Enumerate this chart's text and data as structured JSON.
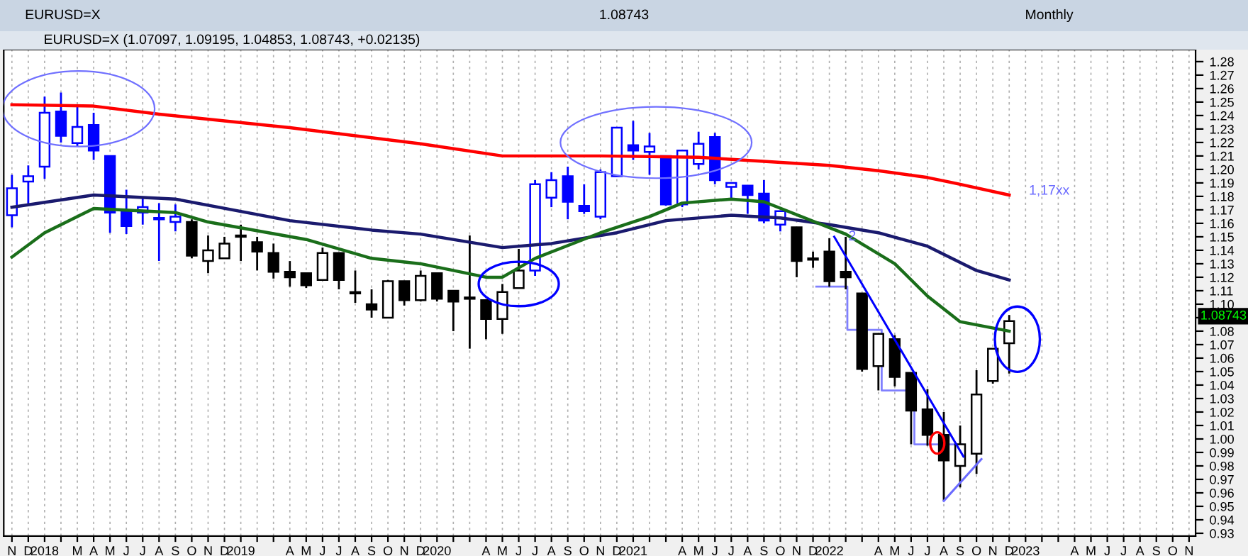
{
  "chart_data": {
    "type": "candlestick",
    "title": "EURUSD=X (1.07097, 1.09195, 1.04853, 1.08743, +0.02135)",
    "annotations": [
      "EURUSD=X",
      "1.08743",
      "Monthly",
      "1,17xx",
      {
        "text": "2",
        "x": "2022-02-06",
        "y": 1.15
      },
      "1.08743"
    ],
    "x": [
      "2017-11",
      "2017-12",
      "2018-01",
      "2018-02",
      "2018-03",
      "2018-04",
      "2018-05",
      "2018-06",
      "2018-07",
      "2018-08",
      "2018-09",
      "2018-10",
      "2018-11",
      "2018-12",
      "2019-01",
      "2019-02",
      "2019-03",
      "2019-04",
      "2019-05",
      "2019-06",
      "2019-07",
      "2019-08",
      "2019-09",
      "2019-10",
      "2019-11",
      "2019-12",
      "2020-01",
      "2020-02",
      "2020-03",
      "2020-04",
      "2020-05",
      "2020-06",
      "2020-07",
      "2020-08",
      "2020-09",
      "2020-10",
      "2020-11",
      "2020-12",
      "2021-01",
      "2021-02",
      "2021-03",
      "2021-04",
      "2021-05",
      "2021-06",
      "2021-07",
      "2021-08",
      "2021-09",
      "2021-10",
      "2021-11",
      "2021-12",
      "2022-01",
      "2022-02",
      "2022-03",
      "2022-04",
      "2022-05",
      "2022-06",
      "2022-07",
      "2022-08",
      "2022-09",
      "2022-10",
      "2022-11",
      "2022-12"
    ],
    "ohlc": [
      [
        1.166,
        1.196,
        1.157,
        1.186
      ],
      [
        1.191,
        1.203,
        1.173,
        1.195
      ],
      [
        1.202,
        1.254,
        1.193,
        1.242
      ],
      [
        1.243,
        1.257,
        1.22,
        1.225
      ],
      [
        1.2195,
        1.248,
        1.217,
        1.2315
      ],
      [
        1.233,
        1.242,
        1.207,
        1.214
      ],
      [
        1.21,
        1.21,
        1.153,
        1.168
      ],
      [
        1.169,
        1.185,
        1.152,
        1.158
      ],
      [
        1.168,
        1.18,
        1.159,
        1.172
      ],
      [
        1.163,
        1.175,
        1.132,
        1.164
      ],
      [
        1.161,
        1.174,
        1.154,
        1.165
      ],
      [
        1.161,
        1.163,
        1.134,
        1.136
      ],
      [
        1.132,
        1.151,
        1.123,
        1.14
      ],
      [
        1.134,
        1.15,
        1.134,
        1.145
      ],
      [
        1.15,
        1.159,
        1.132,
        1.151
      ],
      [
        1.146,
        1.15,
        1.125,
        1.139
      ],
      [
        1.138,
        1.145,
        1.119,
        1.124
      ],
      [
        1.124,
        1.132,
        1.113,
        1.12
      ],
      [
        1.123,
        1.123,
        1.112,
        1.114
      ],
      [
        1.118,
        1.142,
        1.118,
        1.138
      ],
      [
        1.138,
        1.138,
        1.111,
        1.118
      ],
      [
        1.109,
        1.125,
        1.101,
        1.108
      ],
      [
        1.1,
        1.111,
        1.09,
        1.096
      ],
      [
        1.09,
        1.118,
        1.09,
        1.117
      ],
      [
        1.117,
        1.117,
        1.099,
        1.103
      ],
      [
        1.103,
        1.125,
        1.102,
        1.121
      ],
      [
        1.123,
        1.123,
        1.102,
        1.104
      ],
      [
        1.11,
        1.11,
        1.08,
        1.102
      ],
      [
        1.105,
        1.151,
        1.067,
        1.104
      ],
      [
        1.103,
        1.103,
        1.074,
        1.089
      ],
      [
        1.089,
        1.115,
        1.078,
        1.109
      ],
      [
        1.112,
        1.141,
        1.112,
        1.125
      ],
      [
        1.125,
        1.192,
        1.121,
        1.189
      ],
      [
        1.179,
        1.198,
        1.172,
        1.192
      ],
      [
        1.195,
        1.202,
        1.163,
        1.176
      ],
      [
        1.173,
        1.189,
        1.167,
        1.169
      ],
      [
        1.165,
        1.2,
        1.163,
        1.198
      ],
      [
        1.195,
        1.231,
        1.195,
        1.231
      ],
      [
        1.218,
        1.236,
        1.207,
        1.214
      ],
      [
        1.213,
        1.227,
        1.196,
        1.217
      ],
      [
        1.21,
        1.21,
        1.173,
        1.174
      ],
      [
        1.174,
        1.214,
        1.172,
        1.214
      ],
      [
        1.204,
        1.228,
        1.2,
        1.219
      ],
      [
        1.224,
        1.227,
        1.189,
        1.192
      ],
      [
        1.187,
        1.19,
        1.178,
        1.19
      ],
      [
        1.188,
        1.188,
        1.167,
        1.181
      ],
      [
        1.182,
        1.192,
        1.16,
        1.162
      ],
      [
        1.159,
        1.169,
        1.154,
        1.169
      ],
      [
        1.157,
        1.157,
        1.12,
        1.132
      ],
      [
        1.133,
        1.139,
        1.127,
        1.134
      ],
      [
        1.139,
        1.149,
        1.113,
        1.117
      ],
      [
        1.124,
        1.15,
        1.111,
        1.12
      ],
      [
        1.108,
        1.108,
        1.05,
        1.052
      ],
      [
        1.054,
        1.078,
        1.036,
        1.078
      ],
      [
        1.074,
        1.077,
        1.039,
        1.046
      ],
      [
        1.049,
        1.049,
        0.996,
        1.021
      ],
      [
        1.022,
        1.037,
        0.995,
        1.003
      ],
      [
        1.003,
        1.02,
        0.954,
        0.984
      ],
      [
        0.98,
        1.01,
        0.964,
        0.996
      ],
      [
        0.989,
        1.051,
        0.974,
        1.033
      ],
      [
        1.043,
        1.067,
        1.041,
        1.067
      ],
      [
        1.07097,
        1.09195,
        1.04853,
        1.08743
      ]
    ],
    "colors": [
      "#0000ff",
      "#0000ff",
      "#0000ff",
      "#0000ff",
      "#0000ff",
      "#0000ff",
      "#0000ff",
      "#0000ff",
      "#0000ff",
      "#0000ff",
      "#0000ff",
      "#000000",
      "#000000",
      "#000000",
      "#000000",
      "#000000",
      "#000000",
      "#000000",
      "#000000",
      "#000000",
      "#000000",
      "#000000",
      "#000000",
      "#000000",
      "#000000",
      "#000000",
      "#000000",
      "#000000",
      "#000000",
      "#000000",
      "#000000",
      "#000000",
      "#0000ff",
      "#0000ff",
      "#0000ff",
      "#0000ff",
      "#0000ff",
      "#0000ff",
      "#0000ff",
      "#0000ff",
      "#0000ff",
      "#0000ff",
      "#0000ff",
      "#0000ff",
      "#0000ff",
      "#0000ff",
      "#0000ff",
      "#0000ff",
      "#000000",
      "#000000",
      "#000000",
      "#000000",
      "#000000",
      "#000000",
      "#000000",
      "#000000",
      "#000000",
      "#000000",
      "#000000",
      "#000000",
      "#000000",
      "#000000"
    ],
    "series": [
      {
        "type": "line",
        "color": "#ff0000",
        "x": [
          "2017-11",
          "2018-04",
          "2018-08",
          "2019-04",
          "2019-12",
          "2020-05",
          "2020-11",
          "2021-05",
          "2022-01",
          "2022-04",
          "2022-07",
          "2022-09",
          "2022-12"
        ],
        "values": [
          1.248,
          1.247,
          1.241,
          1.231,
          1.219,
          1.21,
          1.21,
          1.209,
          1.203,
          1.199,
          1.194,
          1.189,
          1.181
        ]
      },
      {
        "type": "line",
        "color": "#1a1a6e",
        "x": [
          "2017-11",
          "2018-04",
          "2018-09",
          "2019-04",
          "2019-09",
          "2019-12",
          "2020-05",
          "2020-08",
          "2020-12",
          "2021-03",
          "2021-07",
          "2021-10",
          "2022-01",
          "2022-04",
          "2022-07",
          "2022-10",
          "2022-12"
        ],
        "values": [
          1.172,
          1.181,
          1.178,
          1.162,
          1.155,
          1.152,
          1.142,
          1.145,
          1.153,
          1.162,
          1.166,
          1.164,
          1.159,
          1.153,
          1.143,
          1.125,
          1.118
        ]
      },
      {
        "type": "line",
        "color": "#1a6e1a",
        "x": [
          "2017-11",
          "2018-01",
          "2018-04",
          "2018-09",
          "2018-11",
          "2019-05",
          "2019-09",
          "2019-12",
          "2020-04",
          "2020-05",
          "2020-07",
          "2020-11",
          "2021-02",
          "2021-04",
          "2021-07",
          "2021-09",
          "2022-02",
          "2022-05",
          "2022-07",
          "2022-09",
          "2022-12"
        ],
        "values": [
          1.135,
          1.153,
          1.171,
          1.168,
          1.161,
          1.148,
          1.134,
          1.13,
          1.12,
          1.12,
          1.134,
          1.153,
          1.165,
          1.175,
          1.178,
          1.176,
          1.152,
          1.13,
          1.106,
          1.087,
          1.08
        ]
      },
      {
        "type": "step",
        "color": "#8080ff",
        "x": [
          "2021-12-07",
          "2022-02-04",
          "2022-04-07",
          "2022-06-07",
          "2022-09-04"
        ],
        "values": [
          1.113,
          1.081,
          1.036,
          0.996,
          0.996
        ]
      },
      {
        "type": "line",
        "color": "#0000ff",
        "x": [
          "2022-01-10",
          "2022-09-07"
        ],
        "values": [
          1.15,
          0.987
        ]
      },
      {
        "type": "line",
        "color": "#6a6aff",
        "x": [
          "2022-08",
          "2022-10-10"
        ],
        "values": [
          0.954,
          0.985
        ]
      }
    ],
    "xlim": [
      "2017-10-16",
      "2023-11-13"
    ],
    "xticks": [
      {
        "value": "2017-11",
        "label": "N"
      },
      {
        "value": "2017-12",
        "label": "D"
      },
      {
        "value": "2018-01",
        "label": "2018"
      },
      {
        "value": "2018-02",
        "label": null
      },
      {
        "value": "2018-03",
        "label": "M"
      },
      {
        "value": "2018-04",
        "label": "A"
      },
      {
        "value": "2018-05",
        "label": "M"
      },
      {
        "value": "2018-06",
        "label": "J"
      },
      {
        "value": "2018-07",
        "label": "J"
      },
      {
        "value": "2018-08",
        "label": "A"
      },
      {
        "value": "2018-09",
        "label": "S"
      },
      {
        "value": "2018-10",
        "label": "O"
      },
      {
        "value": "2018-11",
        "label": "N"
      },
      {
        "value": "2018-12",
        "label": "D"
      },
      {
        "value": "2019-01",
        "label": "2019"
      },
      {
        "value": "2019-02",
        "label": null
      },
      {
        "value": "2019-03",
        "label": null
      },
      {
        "value": "2019-04",
        "label": "A"
      },
      {
        "value": "2019-05",
        "label": "M"
      },
      {
        "value": "2019-06",
        "label": "J"
      },
      {
        "value": "2019-07",
        "label": "J"
      },
      {
        "value": "2019-08",
        "label": "A"
      },
      {
        "value": "2019-09",
        "label": "S"
      },
      {
        "value": "2019-10",
        "label": "O"
      },
      {
        "value": "2019-11",
        "label": "N"
      },
      {
        "value": "2019-12",
        "label": "D"
      },
      {
        "value": "2020-01",
        "label": "2020"
      },
      {
        "value": "2020-02",
        "label": null
      },
      {
        "value": "2020-03",
        "label": null
      },
      {
        "value": "2020-04",
        "label": "A"
      },
      {
        "value": "2020-05",
        "label": "M"
      },
      {
        "value": "2020-06",
        "label": "J"
      },
      {
        "value": "2020-07",
        "label": "J"
      },
      {
        "value": "2020-08",
        "label": "A"
      },
      {
        "value": "2020-09",
        "label": "S"
      },
      {
        "value": "2020-10",
        "label": "O"
      },
      {
        "value": "2020-11",
        "label": "N"
      },
      {
        "value": "2020-12",
        "label": "D"
      },
      {
        "value": "2021-01",
        "label": "2021"
      },
      {
        "value": "2021-02",
        "label": null
      },
      {
        "value": "2021-03",
        "label": null
      },
      {
        "value": "2021-04",
        "label": "A"
      },
      {
        "value": "2021-05",
        "label": "M"
      },
      {
        "value": "2021-06",
        "label": "J"
      },
      {
        "value": "2021-07",
        "label": "J"
      },
      {
        "value": "2021-08",
        "label": "A"
      },
      {
        "value": "2021-09",
        "label": "S"
      },
      {
        "value": "2021-10",
        "label": "O"
      },
      {
        "value": "2021-11",
        "label": "N"
      },
      {
        "value": "2021-12",
        "label": "D"
      },
      {
        "value": "2022-01",
        "label": "2022"
      },
      {
        "value": "2022-02",
        "label": null
      },
      {
        "value": "2022-03",
        "label": null
      },
      {
        "value": "2022-04",
        "label": "A"
      },
      {
        "value": "2022-05",
        "label": "M"
      },
      {
        "value": "2022-06",
        "label": "J"
      },
      {
        "value": "2022-07",
        "label": "J"
      },
      {
        "value": "2022-08",
        "label": "A"
      },
      {
        "value": "2022-09",
        "label": "S"
      },
      {
        "value": "2022-10",
        "label": "O"
      },
      {
        "value": "2022-11",
        "label": "N"
      },
      {
        "value": "2022-12",
        "label": "D"
      },
      {
        "value": "2023-01",
        "label": "2023"
      },
      {
        "value": "2023-02",
        "label": null
      },
      {
        "value": "2023-03",
        "label": null
      },
      {
        "value": "2023-04",
        "label": "A"
      },
      {
        "value": "2023-05",
        "label": "M"
      },
      {
        "value": "2023-06",
        "label": "J"
      },
      {
        "value": "2023-07",
        "label": "J"
      },
      {
        "value": "2023-08",
        "label": "A"
      },
      {
        "value": "2023-09",
        "label": "S"
      },
      {
        "value": "2023-10",
        "label": "O"
      },
      {
        "value": "2023-11",
        "label": "N"
      }
    ],
    "ylim": [
      0.928,
      1.289
    ],
    "yticks": [
      0.93,
      0.94,
      0.95,
      0.96,
      0.97,
      0.98,
      0.99,
      {
        "value": 1.0,
        "label": "1.00"
      },
      1.01,
      1.02,
      1.03,
      1.04,
      1.05,
      1.06,
      1.07,
      1.08,
      {
        "value": 1.09,
        "label": null
      },
      {
        "value": 1.1,
        "label": "1.10"
      },
      1.11,
      1.12,
      1.13,
      1.14,
      1.15,
      1.16,
      1.17,
      1.18,
      1.19,
      {
        "value": 1.2,
        "label": "1.20"
      },
      1.21,
      1.22,
      1.23,
      1.24,
      1.25,
      1.26,
      1.27,
      1.28
    ],
    "grid": "x"
  }
}
